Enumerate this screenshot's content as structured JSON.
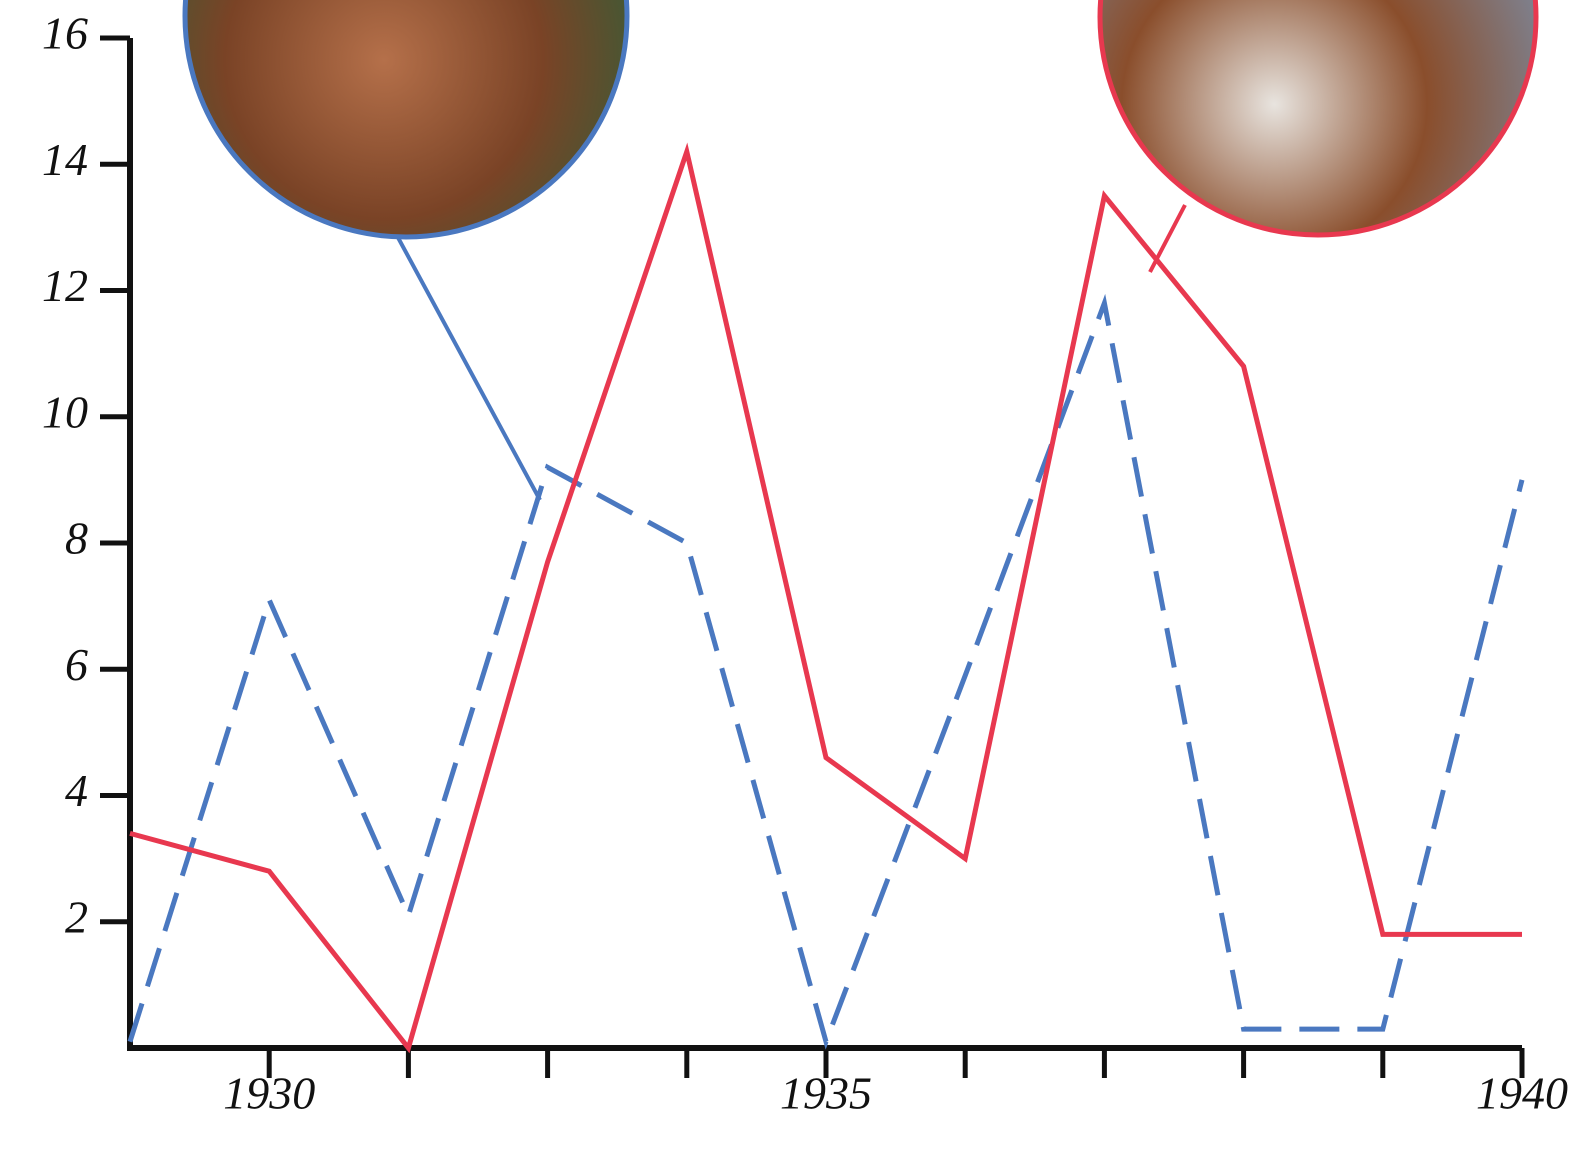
{
  "chart_data": {
    "type": "line",
    "categories": [
      null,
      "1930",
      null,
      null,
      null,
      "1935",
      null,
      null,
      null,
      null,
      "1940"
    ],
    "series": [
      {
        "color": "#4a78c0",
        "dash": true,
        "values": [
          0.1,
          7.1,
          2.1,
          9.2,
          8.0,
          0.1,
          5.9,
          11.8,
          0.3,
          0.3,
          9.0
        ]
      },
      {
        "color": "#e8384f",
        "dash": false,
        "values": [
          3.4,
          2.8,
          0,
          7.7,
          14.2,
          4.6,
          3.0,
          13.5,
          10.8,
          1.8,
          1.8
        ]
      }
    ],
    "ylim": [
      0,
      16
    ],
    "yticks": [
      2,
      4,
      6,
      8,
      10,
      12,
      14,
      16
    ],
    "grid": false
  }
}
